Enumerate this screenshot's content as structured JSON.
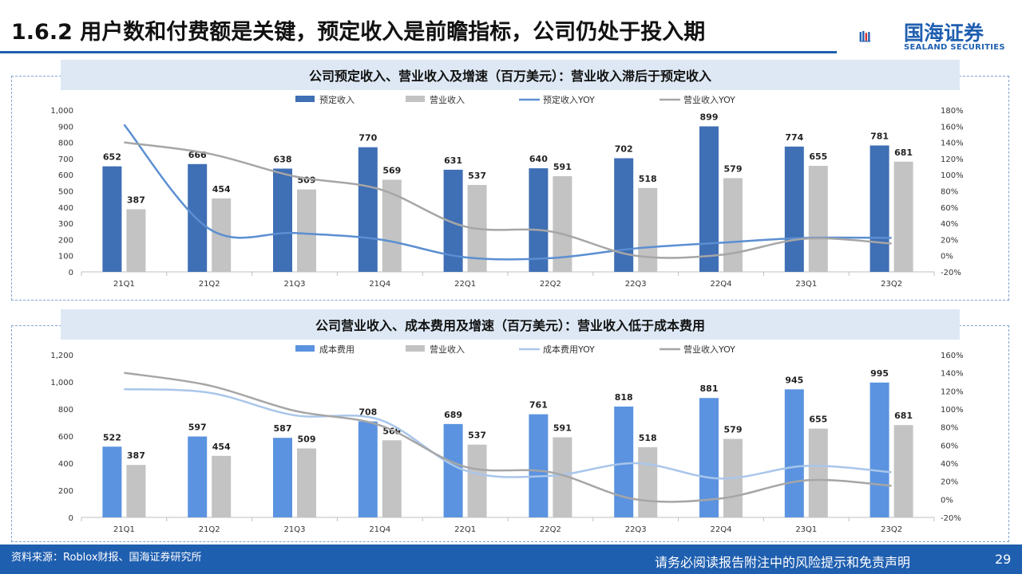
{
  "header": {
    "title": "1.6.2 用户数和付费额是关键，预定收入是前瞻指标，公司仍处于投入期",
    "logo_cn": "国海证券",
    "logo_en": "SEALAND SECURITIES",
    "brand_color": "#1f5fb0"
  },
  "charts": {
    "top_title": "公司预定收入、营业收入及增速（百万美元）：营业收入滞后于预定收入",
    "bottom_title": "公司营业收入、成本费用及增速（百万美元）：营业收入低于成本费用"
  },
  "chart_data": [
    {
      "type": "bar",
      "title": "公司预定收入、营业收入及增速（百万美元）：营业收入滞后于预定收入",
      "categories": [
        "21Q1",
        "21Q2",
        "21Q3",
        "21Q4",
        "22Q1",
        "22Q2",
        "22Q3",
        "22Q4",
        "23Q1",
        "23Q2"
      ],
      "series": [
        {
          "name": "预定收入",
          "kind": "bar",
          "axis": "left",
          "color": "#3f6fb5",
          "values": [
            652,
            666,
            638,
            770,
            631,
            640,
            702,
            899,
            774,
            781
          ]
        },
        {
          "name": "营业收入",
          "kind": "bar",
          "axis": "left",
          "color": "#c3c3c3",
          "values": [
            387,
            454,
            509,
            569,
            537,
            591,
            518,
            579,
            655,
            681
          ]
        },
        {
          "name": "预定收入YOY",
          "kind": "line",
          "axis": "right",
          "color": "#5b8fd1",
          "values": [
            162,
            33,
            28,
            20,
            -2,
            -3,
            9,
            16,
            22,
            22
          ]
        },
        {
          "name": "营业收入YOY",
          "kind": "line",
          "axis": "right",
          "color": "#a6a6a6",
          "values": [
            140,
            126,
            98,
            82,
            36,
            30,
            0,
            1,
            21,
            15
          ]
        }
      ],
      "y_left": {
        "min": 0,
        "max": 1000,
        "ticks": [
          "0",
          "100",
          "200",
          "300",
          "400",
          "500",
          "600",
          "700",
          "800",
          "900",
          "1,000"
        ]
      },
      "y_right": {
        "min": -20,
        "max": 180,
        "ticks": [
          "-20%",
          "0%",
          "20%",
          "40%",
          "60%",
          "80%",
          "100%",
          "120%",
          "140%",
          "160%",
          "180%"
        ]
      },
      "legend": "top",
      "grid": false
    },
    {
      "type": "bar",
      "title": "公司营业收入、成本费用及增速（百万美元）：营业收入低于成本费用",
      "categories": [
        "21Q1",
        "21Q2",
        "21Q3",
        "21Q4",
        "22Q1",
        "22Q2",
        "22Q3",
        "22Q4",
        "23Q1",
        "23Q2"
      ],
      "series": [
        {
          "name": "成本费用",
          "kind": "bar",
          "axis": "left",
          "color": "#5b93e0",
          "values": [
            522,
            597,
            587,
            708,
            689,
            761,
            818,
            881,
            945,
            995
          ]
        },
        {
          "name": "营业收入",
          "kind": "bar",
          "axis": "left",
          "color": "#c3c3c3",
          "values": [
            387,
            454,
            509,
            569,
            537,
            591,
            518,
            579,
            655,
            681
          ]
        },
        {
          "name": "成本费用YOY",
          "kind": "line",
          "axis": "right",
          "color": "#a9c6ea",
          "values": [
            122,
            118,
            93,
            88,
            32,
            26,
            40,
            23,
            37,
            30
          ]
        },
        {
          "name": "营业收入YOY",
          "kind": "line",
          "axis": "right",
          "color": "#a6a6a6",
          "values": [
            140,
            126,
            98,
            82,
            36,
            30,
            0,
            1,
            21,
            15
          ]
        }
      ],
      "y_left": {
        "min": 0,
        "max": 1200,
        "ticks": [
          "0",
          "200",
          "400",
          "600",
          "800",
          "1,000",
          "1,200"
        ]
      },
      "y_right": {
        "min": -20,
        "max": 160,
        "ticks": [
          "-20%",
          "0%",
          "20%",
          "40%",
          "60%",
          "80%",
          "100%",
          "120%",
          "140%",
          "160%"
        ]
      },
      "legend": "top",
      "grid": false
    }
  ],
  "footer": {
    "source": "资料来源：Roblox财报、国海证券研究所",
    "disclaimer": "请务必阅读报告附注中的风险提示和免责声明",
    "page": "29"
  }
}
